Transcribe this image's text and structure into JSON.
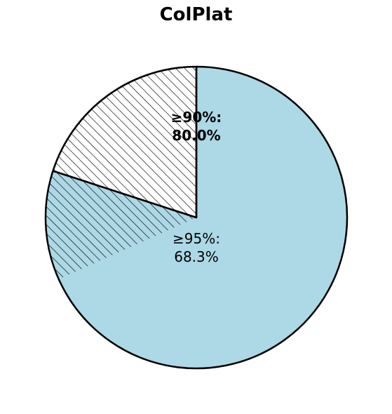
{
  "chart_data": {
    "type": "pie",
    "title": "ColPlat",
    "fill_color": "#add8e6",
    "edge_color": "#000000",
    "outer_fraction": 0.8,
    "inner_fraction": 0.683,
    "outer_label": {
      "line1": "≥90%:",
      "line2": "80.0%"
    },
    "inner_label": {
      "line1": "≥95%:",
      "line2": "68.3%"
    }
  }
}
